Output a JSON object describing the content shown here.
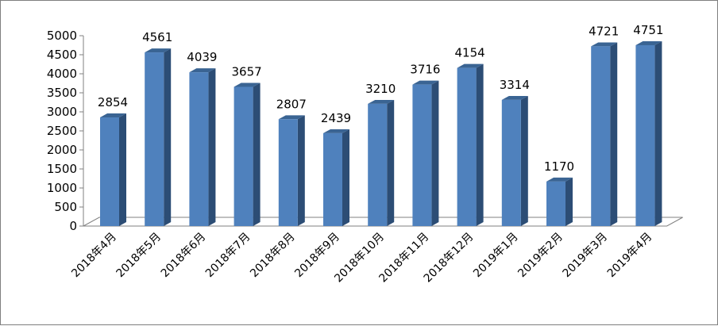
{
  "chart_data": {
    "type": "bar",
    "title": "",
    "xlabel": "",
    "ylabel": "",
    "categories": [
      "2018年4月",
      "2018年5月",
      "2018年6月",
      "2018年7月",
      "2018年8月",
      "2018年9月",
      "2018年10月",
      "2018年11月",
      "2018年12月",
      "2019年1月",
      "2019年2月",
      "2019年3月",
      "2019年4月"
    ],
    "values": [
      2854,
      4561,
      4039,
      3657,
      2807,
      2439,
      3210,
      3716,
      4154,
      3314,
      1170,
      4721,
      4751
    ],
    "ylim": [
      0,
      5000
    ],
    "yticks": [
      0,
      500,
      1000,
      1500,
      2000,
      2500,
      3000,
      3500,
      4000,
      4500,
      5000
    ],
    "grid": false,
    "legend": "none",
    "style": "3d-column",
    "colors": {
      "bar_front": "#4f81bd",
      "bar_side": "#2c4d75",
      "bar_top": "#3a6493",
      "axis": "#808080",
      "floor": "#ffffff"
    }
  }
}
